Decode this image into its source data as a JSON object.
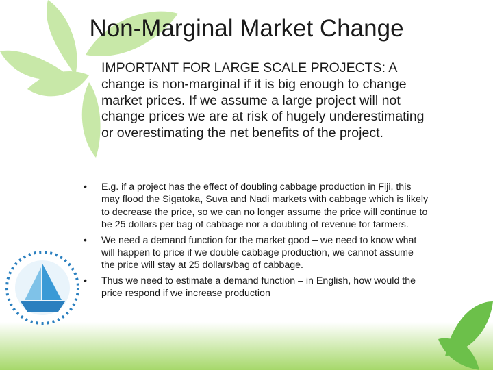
{
  "header": {
    "title": "Non-Marginal Market Change"
  },
  "body": {
    "intro": "IMPORTANT FOR LARGE SCALE PROJECTS: A change is non-marginal if it is big enough to change market prices.  If we assume a large project will not change prices we are at risk of hugely underestimating or overestimating the net benefits of the project.",
    "bullets": [
      "E.g. if a project has the effect of doubling cabbage production in Fiji, this may flood the Sigatoka, Suva and Nadi markets with cabbage which is likely to decrease the price, so we can no longer assume the price will continue to be 25 dollars per bag of cabbage nor a doubling of revenue for farmers.",
      "We need a demand function for the market good – we need to know what will happen to price if we double cabbage production, we cannot assume the price will stay at 25 dollars/bag of cabbage.",
      "Thus we need to estimate a demand function – in English, how would the price respond if we increase production"
    ]
  }
}
